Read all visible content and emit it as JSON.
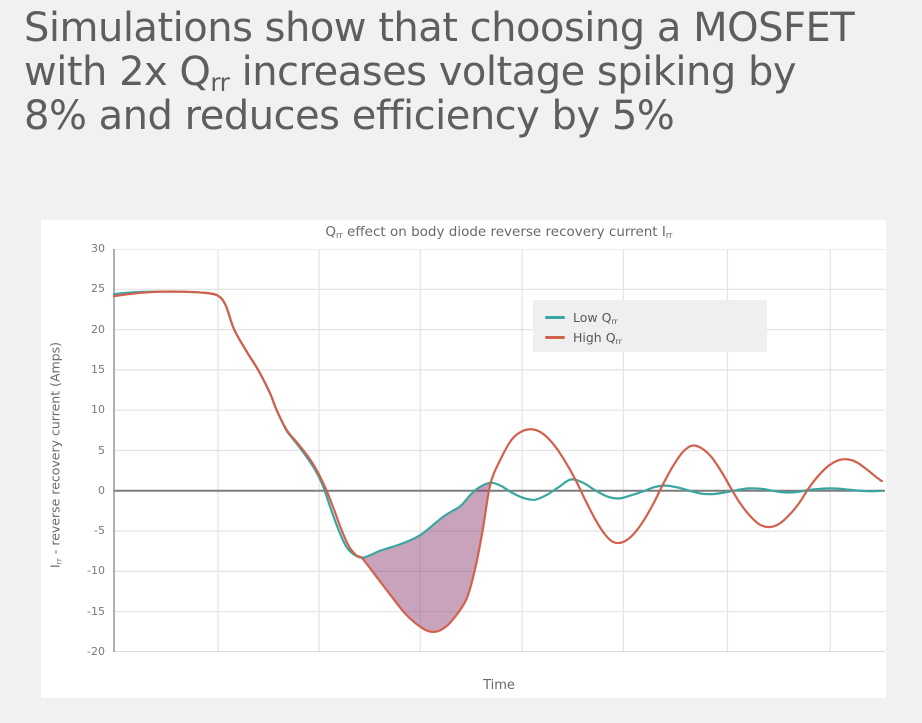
{
  "page": {
    "background": "#f1f1f2"
  },
  "heading": {
    "color": "#5d5e60",
    "lines": [
      [
        {
          "t": "Simulations show that choosing a MOSFET"
        }
      ],
      [
        {
          "t": "with 2x Q"
        },
        {
          "t": "rr",
          "sub": true
        },
        {
          "t": " increases voltage spiking by"
        }
      ],
      [
        {
          "t": "8% and reduces efficiency by 5%"
        }
      ]
    ]
  },
  "chart_data": {
    "type": "line",
    "title_segments": [
      {
        "t": "Q"
      },
      {
        "t": "rr",
        "sub": true
      },
      {
        "t": " effect on body diode reverse recovery current I"
      },
      {
        "t": "rr",
        "sub": true
      }
    ],
    "xlabel": "Time",
    "ylabel_segments": [
      {
        "t": "I"
      },
      {
        "t": "rr",
        "sub": true
      },
      {
        "t": " - reverse recovery current (Amps)"
      }
    ],
    "xlim": [
      0,
      100
    ],
    "ylim": [
      -20,
      30
    ],
    "yticks": [
      30,
      25,
      20,
      15,
      10,
      5,
      0,
      -5,
      -10,
      -15,
      -20
    ],
    "x_gridlines": [
      13.6,
      26.7,
      39.8,
      53.0,
      66.1,
      79.6,
      92.9
    ],
    "grid_color": "#e3e3e3",
    "zero_line_color": "#7d7d7d",
    "axis_line_color": "#9c9c9c",
    "bottom_line_color": "#cfcfcf",
    "legend": {
      "items": [
        {
          "segments": [
            {
              "t": "Low Q"
            },
            {
              "t": "rr",
              "sub": true
            }
          ],
          "color": "#3aa6a2"
        },
        {
          "segments": [
            {
              "t": "High Q"
            },
            {
              "t": "rr",
              "sub": true
            }
          ],
          "color": "#d2604d"
        }
      ]
    },
    "series": [
      {
        "name": "Low Qrr",
        "color": "#3aa6a2",
        "x": [
          0,
          3,
          6,
          9,
          12,
          13.6,
          14.6,
          15.7,
          17.3,
          18.8,
          20.3,
          21.2,
          22.4,
          23.0,
          24.0,
          25.3,
          26.3,
          27.2,
          28.2,
          29.2,
          30.2,
          31.2,
          32.3,
          33.5,
          34.7,
          37.3,
          39.8,
          42.8,
          45.0,
          46.2,
          47.4,
          48.9,
          50.3,
          51.6,
          53.2,
          54.7,
          56.2,
          57.8,
          59.3,
          60.9,
          62.4,
          64.0,
          65.5,
          67.0,
          68.6,
          70.1,
          71.6,
          73.2,
          74.7,
          76.2,
          77.8,
          79.3,
          80.9,
          82.4,
          84.0,
          85.5,
          87.0,
          88.6,
          90.1,
          91.6,
          93.2,
          94.7,
          96.2,
          97.8,
          99.6
        ],
        "y": [
          24.4,
          24.65,
          24.7,
          24.7,
          24.55,
          24.2,
          23.0,
          20.0,
          17.3,
          15.0,
          12.2,
          10.0,
          7.6,
          6.8,
          5.6,
          3.9,
          2.4,
          0.6,
          -2.2,
          -4.8,
          -6.9,
          -7.9,
          -8.3,
          -7.9,
          -7.4,
          -6.6,
          -5.5,
          -3.2,
          -1.9,
          -0.6,
          0.4,
          1.0,
          0.6,
          -0.2,
          -0.9,
          -1.1,
          -0.5,
          0.5,
          1.4,
          1.0,
          0.1,
          -0.7,
          -0.95,
          -0.6,
          -0.1,
          0.45,
          0.65,
          0.4,
          0.0,
          -0.35,
          -0.4,
          -0.2,
          0.1,
          0.3,
          0.25,
          0.0,
          -0.2,
          -0.15,
          0.1,
          0.25,
          0.3,
          0.2,
          0.05,
          -0.05,
          0.0
        ]
      },
      {
        "name": "High Qrr",
        "color": "#d2604d",
        "x": [
          0,
          3,
          6,
          9,
          12,
          13.6,
          14.6,
          15.7,
          17.3,
          18.8,
          20.3,
          21.2,
          22.4,
          23.0,
          24.0,
          25.3,
          26.3,
          27.5,
          28.5,
          29.5,
          30.5,
          31.5,
          32.3,
          34,
          36,
          38,
          40,
          41.3,
          42.6,
          44,
          45.8,
          47.0,
          47.9,
          48.9,
          50.2,
          51.6,
          53.0,
          54.5,
          55.8,
          57.2,
          58.6,
          60.0,
          61.2,
          62.5,
          63.8,
          64.9,
          66.2,
          67.5,
          68.8,
          70.1,
          71.3,
          72.5,
          73.8,
          75.0,
          76.2,
          77.5,
          78.8,
          80.0,
          81.2,
          82.5,
          83.8,
          85.0,
          86.3,
          87.6,
          88.9,
          90.1,
          91.4,
          92.7,
          94.0,
          95.2,
          96.4,
          97.7,
          99.0,
          99.6
        ],
        "y": [
          24.15,
          24.5,
          24.7,
          24.7,
          24.55,
          24.2,
          23.0,
          20.0,
          17.3,
          15.0,
          12.2,
          10.0,
          7.7,
          6.9,
          5.8,
          4.2,
          2.7,
          0.4,
          -2.0,
          -4.6,
          -6.8,
          -8.0,
          -8.4,
          -10.5,
          -13.0,
          -15.4,
          -17.0,
          -17.5,
          -17.2,
          -16.0,
          -13.4,
          -9.3,
          -4.8,
          0.9,
          3.9,
          6.3,
          7.4,
          7.6,
          7.0,
          5.6,
          3.6,
          1.2,
          -1.2,
          -3.6,
          -5.5,
          -6.4,
          -6.3,
          -5.3,
          -3.6,
          -1.4,
          0.9,
          3.0,
          4.8,
          5.6,
          5.3,
          4.2,
          2.4,
          0.4,
          -1.5,
          -3.1,
          -4.2,
          -4.5,
          -4.1,
          -3.0,
          -1.5,
          0.3,
          1.9,
          3.1,
          3.8,
          3.9,
          3.5,
          2.6,
          1.6,
          1.2
        ]
      }
    ],
    "fill_between": {
      "series_top": "Low Qrr",
      "series_bottom": "High Qrr",
      "x_start": 32.3,
      "x_end": 48.9,
      "color": "rgba(143,62,113,0.48)"
    }
  }
}
